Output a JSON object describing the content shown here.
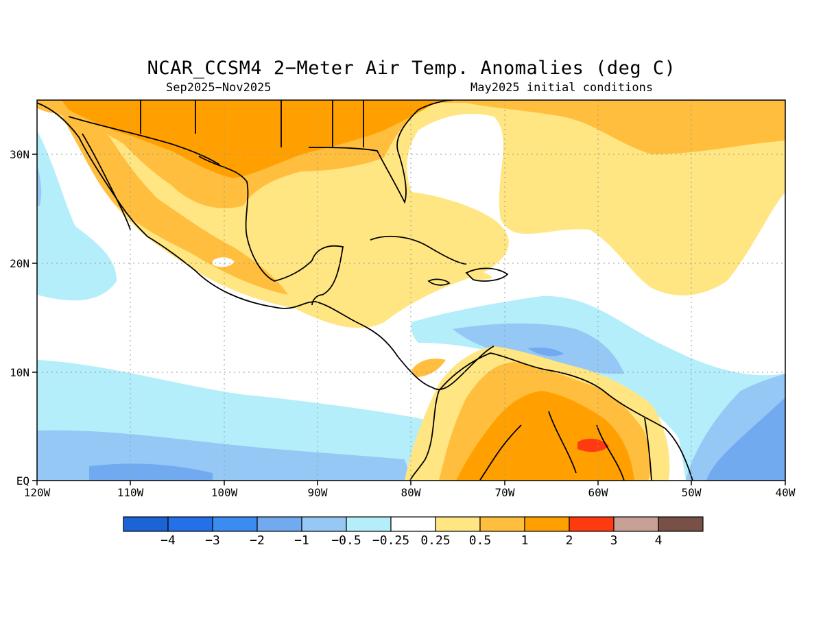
{
  "title": "NCAR_CCSM4 2−Meter Air Temp. Anomalies (deg C)",
  "period": "Sep2025−Nov2025",
  "initial_conditions": "May2025 initial conditions",
  "map_extent": {
    "lon": [
      -120,
      -40
    ],
    "lat": [
      0,
      35
    ]
  },
  "lon_labels": [
    "120W",
    "110W",
    "100W",
    "90W",
    "80W",
    "70W",
    "60W",
    "50W",
    "40W"
  ],
  "lat_labels": [
    "EQ",
    "10N",
    "20N",
    "30N"
  ],
  "colorbar": {
    "labels": [
      "−4",
      "−3",
      "−2",
      "−1",
      "−0.5",
      "−0.25",
      "0.25",
      "0.5",
      "1",
      "2",
      "3",
      "4"
    ],
    "colors": [
      "#1c64d6",
      "#2470e8",
      "#3a8cf0",
      "#72aaf0",
      "#96c8f6",
      "#b4eefa",
      "#ffffff",
      "#ffe682",
      "#ffbe3e",
      "#ffa000",
      "#ff3a10",
      "#c8a096",
      "#785046"
    ]
  }
}
